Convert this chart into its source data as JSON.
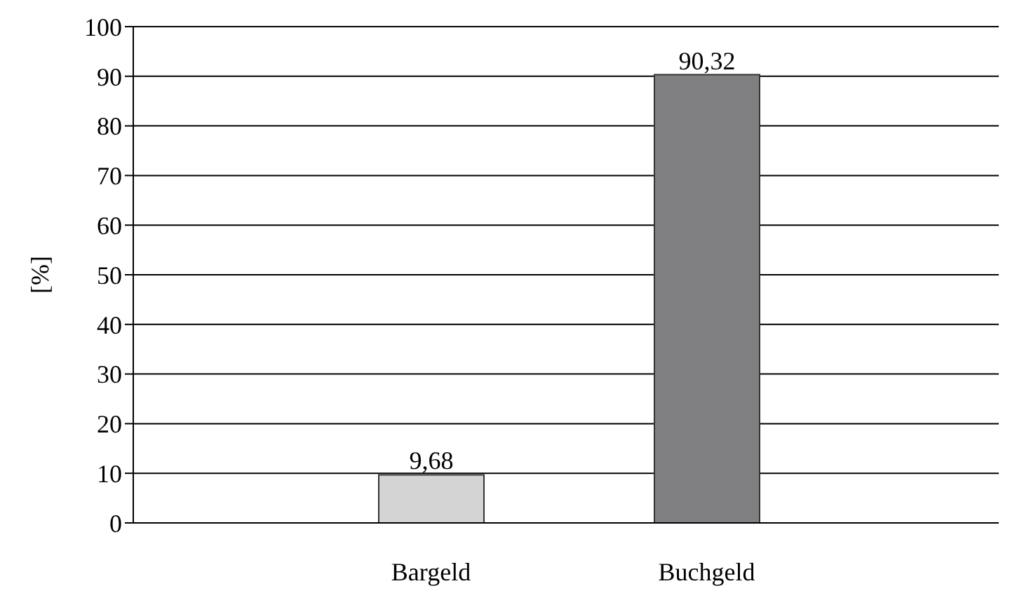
{
  "chart_data": {
    "type": "bar",
    "ylabel": "[%]",
    "categories": [
      "Bargeld",
      "Buchgeld"
    ],
    "values": [
      9.68,
      90.32
    ],
    "colors": [
      "#d4d4d4",
      "#808083"
    ],
    "value_labels": [
      "9,68",
      "90,32"
    ],
    "ylim": [
      0,
      100
    ],
    "yticks": [
      0,
      10,
      20,
      30,
      40,
      50,
      60,
      70,
      80,
      90,
      100
    ],
    "grid": "y"
  }
}
